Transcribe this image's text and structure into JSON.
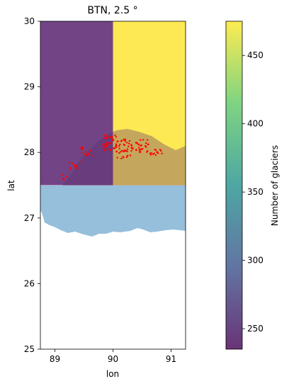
{
  "chart_data": [
    {
      "type": "heatmap",
      "title": "BTN, 2.5 °",
      "xlabel": "lon",
      "ylabel": "lat",
      "xlim": [
        88.75,
        91.25
      ],
      "ylim": [
        25,
        30
      ],
      "x_ticks": [
        89,
        90,
        91
      ],
      "y_ticks": [
        25,
        26,
        27,
        28,
        29,
        30
      ],
      "grid": false,
      "cells": [
        {
          "lon_range": [
            88.75,
            90.0
          ],
          "lat_range": [
            27.5,
            30.0
          ],
          "value": 235,
          "color": "#6a3a80"
        },
        {
          "lon_range": [
            90.0,
            91.25
          ],
          "lat_range": [
            27.5,
            30.0
          ],
          "value": 475,
          "color": "#fde84a"
        }
      ],
      "background_region": {
        "name": "lowland",
        "color": "#8fbcd9"
      },
      "glacier_points_color": "#ff0000"
    },
    {
      "type": "colorbar",
      "label": "Number of glaciers",
      "range": [
        235,
        475
      ],
      "ticks": [
        250,
        300,
        350,
        400,
        450
      ],
      "colormap": "viridis"
    }
  ]
}
